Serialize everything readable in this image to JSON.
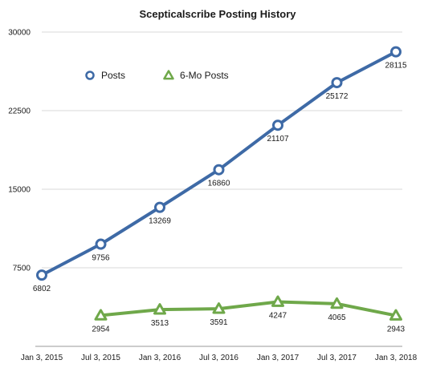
{
  "chart_data": {
    "type": "line",
    "title": "Scepticalscribe Posting History",
    "categories": [
      "Jan 3, 2015",
      "Jul 3, 2015",
      "Jan 3, 2016",
      "Jul 3, 2016",
      "Jan 3, 2017",
      "Jul 3, 2017",
      "Jan 3, 2018"
    ],
    "series": [
      {
        "name": "Posts",
        "marker": "circle",
        "color": "#3e6aa6",
        "x": [
          0,
          1,
          2,
          3,
          4,
          5,
          6
        ],
        "values": [
          6802,
          9756,
          13269,
          16860,
          21107,
          25172,
          28115
        ],
        "labels": [
          "6802",
          "9756",
          "13269",
          "16860",
          "21107",
          "25172",
          "28115"
        ]
      },
      {
        "name": "6-Mo Posts",
        "marker": "triangle",
        "color": "#6fa84a",
        "x": [
          1,
          2,
          3,
          4,
          5,
          6
        ],
        "values": [
          2954,
          3513,
          3591,
          4247,
          4065,
          2943
        ],
        "labels": [
          "2954",
          "3513",
          "3591",
          "4247",
          "4065",
          "2943"
        ]
      }
    ],
    "y_ticks": [
      0,
      7500,
      15000,
      22500,
      30000
    ],
    "y_tick_labels": [
      "",
      "7500",
      "15000",
      "22500",
      "30000"
    ],
    "ylim": [
      0,
      30000
    ],
    "grid": true,
    "legend_position": "top-left"
  }
}
